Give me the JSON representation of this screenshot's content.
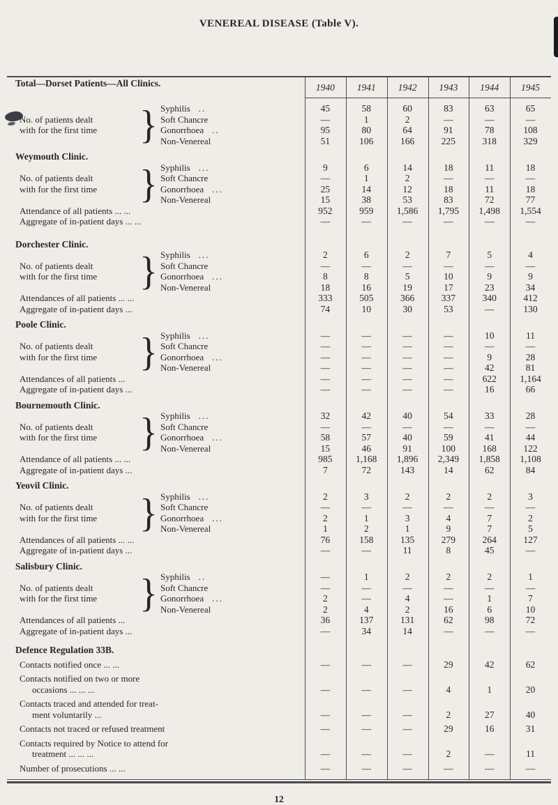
{
  "page": {
    "title": "VENEREAL DISEASE (Table V).",
    "page_number": "12"
  },
  "colors": {
    "paper": "#efede7",
    "ink": "#26262a",
    "rule": "#4a4a50"
  },
  "table": {
    "years": [
      "1940",
      "1941",
      "1942",
      "1943",
      "1944",
      "1945"
    ],
    "sections": [
      {
        "heading": "Total—Dorset Patients—All Clinics.",
        "group": {
          "label_lines": [
            "No. of patients dealt",
            "with for the first time"
          ],
          "rows": [
            {
              "label": "Syphilis",
              "dots": "..",
              "values": [
                "45",
                "58",
                "60",
                "83",
                "63",
                "65"
              ]
            },
            {
              "label": "Soft Chancre",
              "dots": "",
              "values": [
                "—",
                "1",
                "2",
                "—",
                "—",
                "—"
              ]
            },
            {
              "label": "Gonorrhoea",
              "dots": "..",
              "values": [
                "95",
                "80",
                "64",
                "91",
                "78",
                "108"
              ]
            },
            {
              "label": "Non-Venereal",
              "dots": "",
              "values": [
                "51",
                "106",
                "166",
                "225",
                "318",
                "329"
              ]
            }
          ]
        },
        "rows": []
      },
      {
        "heading": "Weymouth Clinic.",
        "group": {
          "label_lines": [
            "No. of patients dealt",
            "with for the first time"
          ],
          "rows": [
            {
              "label": "Syphilis",
              "dots": "...",
              "values": [
                "9",
                "6",
                "14",
                "18",
                "11",
                "18"
              ]
            },
            {
              "label": "Soft Chancre",
              "dots": "",
              "values": [
                "—",
                "1",
                "2",
                "—",
                "—",
                "—"
              ]
            },
            {
              "label": "Gonorrhoea",
              "dots": "...",
              "values": [
                "25",
                "14",
                "12",
                "18",
                "11",
                "18"
              ]
            },
            {
              "label": "Non-Venereal",
              "dots": "",
              "values": [
                "15",
                "38",
                "53",
                "83",
                "72",
                "77"
              ]
            }
          ]
        },
        "rows": [
          {
            "lines": [
              "Attendance of all patients ... ..."
            ],
            "values": [
              "952",
              "959",
              "1,586",
              "1,795",
              "1,498",
              "1,554"
            ]
          },
          {
            "lines": [
              "Aggregate of in-patient days ... ..."
            ],
            "values": [
              "—",
              "—",
              "—",
              "—",
              "—",
              "—"
            ]
          }
        ]
      },
      {
        "heading": "Dorchester Clinic.",
        "group": {
          "label_lines": [
            "No. of patients dealt",
            "with for the first time"
          ],
          "rows": [
            {
              "label": "Syphilis",
              "dots": "...",
              "values": [
                "2",
                "6",
                "2",
                "7",
                "5",
                "4"
              ]
            },
            {
              "label": "Soft Chancre",
              "dots": "",
              "values": [
                "—",
                "—",
                "—",
                "—",
                "—",
                "—"
              ]
            },
            {
              "label": "Gonorrhoea",
              "dots": "...",
              "values": [
                "8",
                "8",
                "5",
                "10",
                "9",
                "9"
              ]
            },
            {
              "label": "Non-Venereal",
              "dots": "",
              "values": [
                "18",
                "16",
                "19",
                "17",
                "23",
                "34"
              ]
            }
          ]
        },
        "rows": [
          {
            "lines": [
              "Attendances of all patients ... ..."
            ],
            "values": [
              "333",
              "505",
              "366",
              "337",
              "340",
              "412"
            ]
          },
          {
            "lines": [
              "Aggregate of in-patient days ..."
            ],
            "values": [
              "74",
              "10",
              "30",
              "53",
              "—",
              "130"
            ]
          }
        ]
      },
      {
        "heading": "Poole Clinic.",
        "group": {
          "label_lines": [
            "No. of patients dealt",
            "with for the first time"
          ],
          "rows": [
            {
              "label": "Syphilis",
              "dots": "...",
              "values": [
                "—",
                "—",
                "—",
                "—",
                "10",
                "11"
              ]
            },
            {
              "label": "Soft Chancre",
              "dots": "",
              "values": [
                "—",
                "—",
                "—",
                "—",
                "—",
                "—"
              ]
            },
            {
              "label": "Gonorrhoea",
              "dots": "...",
              "values": [
                "—",
                "—",
                "—",
                "—",
                "9",
                "28"
              ]
            },
            {
              "label": "Non-Venereal",
              "dots": "",
              "values": [
                "—",
                "—",
                "—",
                "—",
                "42",
                "81"
              ]
            }
          ]
        },
        "rows": [
          {
            "lines": [
              "Attendances of all patients ..."
            ],
            "values": [
              "—",
              "—",
              "—",
              "—",
              "622",
              "1,164"
            ]
          },
          {
            "lines": [
              "Aggregate of in-patient days ..."
            ],
            "values": [
              "—",
              "—",
              "—",
              "—",
              "16",
              "66"
            ]
          }
        ]
      },
      {
        "heading": "Bournemouth Clinic.",
        "group": {
          "label_lines": [
            "No. of patients dealt",
            "with for the first time"
          ],
          "rows": [
            {
              "label": "Syphilis",
              "dots": "...",
              "values": [
                "32",
                "42",
                "40",
                "54",
                "33",
                "28"
              ]
            },
            {
              "label": "Soft Chancre",
              "dots": "",
              "values": [
                "—",
                "—",
                "—",
                "—",
                "—",
                "—"
              ]
            },
            {
              "label": "Gonorrhoea",
              "dots": "...",
              "values": [
                "58",
                "57",
                "40",
                "59",
                "41",
                "44"
              ]
            },
            {
              "label": "Non-Venereal",
              "dots": "",
              "values": [
                "15",
                "46",
                "91",
                "100",
                "168",
                "122"
              ]
            }
          ]
        },
        "rows": [
          {
            "lines": [
              "Attendance of all patients ... ..."
            ],
            "values": [
              "985",
              "1,168",
              "1,896",
              "2,349",
              "1,858",
              "1,108"
            ]
          },
          {
            "lines": [
              "Aggregate of in-patient days ..."
            ],
            "values": [
              "7",
              "72",
              "143",
              "14",
              "62",
              "84"
            ]
          }
        ]
      },
      {
        "heading": "Yeovil Clinic.",
        "group": {
          "label_lines": [
            "No. of patients dealt",
            "with for the first time"
          ],
          "rows": [
            {
              "label": "Syphilis",
              "dots": "...",
              "values": [
                "2",
                "3",
                "2",
                "2",
                "2",
                "3"
              ]
            },
            {
              "label": "Soft Chancre",
              "dots": "",
              "values": [
                "—",
                "—",
                "—",
                "—",
                "—",
                "—"
              ]
            },
            {
              "label": "Gonorrhoea",
              "dots": "...",
              "values": [
                "2",
                "1",
                "3",
                "4",
                "7",
                "2"
              ]
            },
            {
              "label": "Non-Venereal",
              "dots": "",
              "values": [
                "1",
                "2",
                "1",
                "9",
                "7",
                "5"
              ]
            }
          ]
        },
        "rows": [
          {
            "lines": [
              "Attendances of all patients ... ..."
            ],
            "values": [
              "76",
              "158",
              "135",
              "279",
              "264",
              "127"
            ]
          },
          {
            "lines": [
              "Aggregate of in-patient days ..."
            ],
            "values": [
              "—",
              "—",
              "11",
              "8",
              "45",
              "—"
            ]
          }
        ]
      },
      {
        "heading": "Salisbury Clinic.",
        "group": {
          "label_lines": [
            "No. of patients dealt",
            "with for the first time"
          ],
          "rows": [
            {
              "label": "Syphilis",
              "dots": "..",
              "values": [
                "—",
                "1",
                "2",
                "2",
                "2",
                "1"
              ]
            },
            {
              "label": "Soft Chancre",
              "dots": "",
              "values": [
                "—",
                "—",
                "—",
                "—",
                "—",
                "—"
              ]
            },
            {
              "label": "Gonorrhoea",
              "dots": "...",
              "values": [
                "2",
                "—",
                "4",
                "—",
                "1",
                "7"
              ]
            },
            {
              "label": "Non-Venereal",
              "dots": "",
              "values": [
                "2",
                "4",
                "2",
                "16",
                "6",
                "10"
              ]
            }
          ]
        },
        "rows": [
          {
            "lines": [
              "Attendances of all patients ..."
            ],
            "values": [
              "36",
              "137",
              "131",
              "62",
              "98",
              "72"
            ]
          },
          {
            "lines": [
              "Aggregate of in-patient days ..."
            ],
            "values": [
              "—",
              "34",
              "14",
              "—",
              "—",
              "—"
            ]
          }
        ]
      },
      {
        "heading": "Defence Regulation 33B.",
        "rows": [
          {
            "lines": [
              "Contacts notified once ... ..."
            ],
            "values": [
              "—",
              "—",
              "—",
              "29",
              "42",
              "62"
            ]
          },
          {
            "lines": [
              "Contacts notified on two or more",
              "occasions ... ... ..."
            ],
            "values": [
              "—",
              "—",
              "—",
              "4",
              "1",
              "20"
            ]
          },
          {
            "lines": [
              "Contacts traced and attended for treat-",
              "ment voluntarily ..."
            ],
            "values": [
              "—",
              "—",
              "—",
              "2",
              "27",
              "40"
            ]
          },
          {
            "lines": [
              "Contacts not traced or refused treatment"
            ],
            "values": [
              "—",
              "—",
              "—",
              "29",
              "16",
              "31"
            ]
          },
          {
            "lines": [
              "Contacts required by Notice to attend for",
              "treatment ... ... ..."
            ],
            "values": [
              "—",
              "—",
              "—",
              "2",
              "—",
              "11"
            ]
          },
          {
            "lines": [
              "Number of prosecutions ... ..."
            ],
            "values": [
              "—",
              "—",
              "—",
              "—",
              "—",
              "—"
            ]
          }
        ]
      }
    ]
  }
}
